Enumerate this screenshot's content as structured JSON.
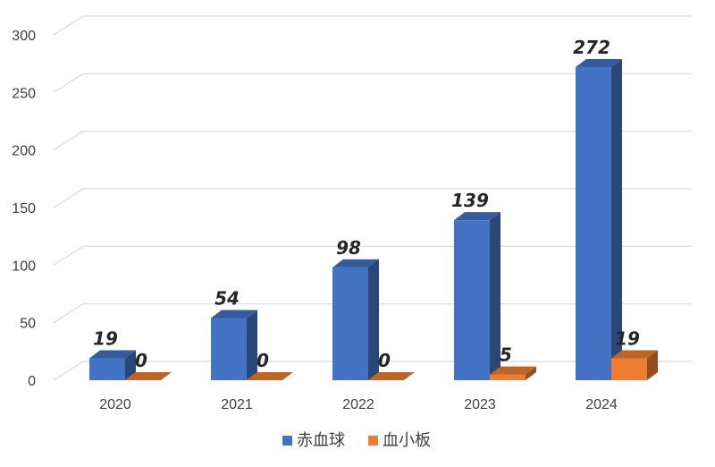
{
  "chart_data": {
    "type": "bar",
    "categories": [
      "2020",
      "2021",
      "2022",
      "2023",
      "2024"
    ],
    "series": [
      {
        "name": "赤血球",
        "values": [
          19,
          54,
          98,
          139,
          272
        ],
        "color": "#4472C4"
      },
      {
        "name": "血小板",
        "values": [
          0,
          0,
          0,
          5,
          19
        ],
        "color": "#ED7D31"
      }
    ],
    "title": "",
    "xlabel": "",
    "ylabel": "",
    "ylim": [
      0,
      300
    ],
    "yticks": [
      "0",
      "50",
      "100",
      "150",
      "200",
      "250",
      "300"
    ],
    "grid": true,
    "legend_position": "bottom",
    "style": "3d-column"
  }
}
